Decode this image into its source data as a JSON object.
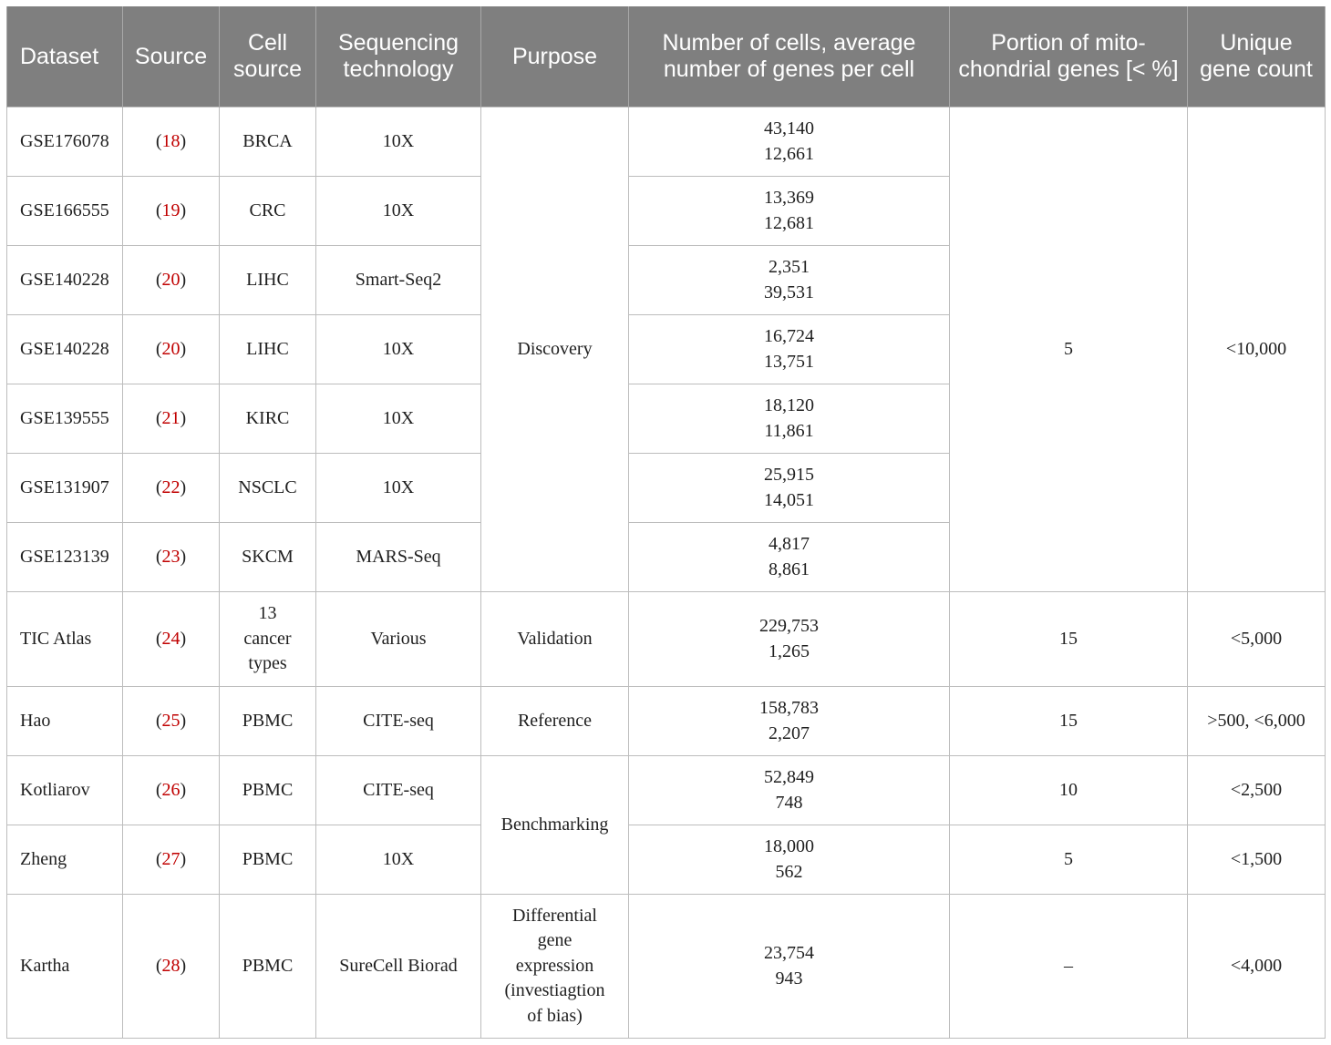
{
  "headers": [
    "Dataset",
    "Source",
    "Cell source",
    "Sequencing technology",
    "Purpose",
    "Number of cells, average number of genes per cell",
    "Portion of mito-chondrial genes [< %]",
    "Unique gene count"
  ],
  "rows": [
    {
      "dataset": "GSE176078",
      "ref": "18",
      "cell_source": "BRCA",
      "tech": "10X",
      "cells": "43,140",
      "genes": "12,661"
    },
    {
      "dataset": "GSE166555",
      "ref": "19",
      "cell_source": "CRC",
      "tech": "10X",
      "cells": "13,369",
      "genes": "12,681"
    },
    {
      "dataset": "GSE140228",
      "ref": "20",
      "cell_source": "LIHC",
      "tech": "Smart-Seq2",
      "cells": "2,351",
      "genes": "39,531"
    },
    {
      "dataset": "GSE140228",
      "ref": "20",
      "cell_source": "LIHC",
      "tech": "10X",
      "cells": "16,724",
      "genes": "13,751"
    },
    {
      "dataset": "GSE139555",
      "ref": "21",
      "cell_source": "KIRC",
      "tech": "10X",
      "cells": "18,120",
      "genes": "11,861"
    },
    {
      "dataset": "GSE131907",
      "ref": "22",
      "cell_source": "NSCLC",
      "tech": "10X",
      "cells": "25,915",
      "genes": "14,051"
    },
    {
      "dataset": "GSE123139",
      "ref": "23",
      "cell_source": "SKCM",
      "tech": "MARS-Seq",
      "cells": "4,817",
      "genes": "8,861"
    },
    {
      "dataset": "TIC Atlas",
      "ref": "24",
      "cell_source": "13 cancer types",
      "tech": "Various",
      "purpose": "Validation",
      "cells": "229,753",
      "genes": "1,265",
      "mito": "15",
      "unique": "<5,000"
    },
    {
      "dataset": "Hao",
      "ref": "25",
      "cell_source": "PBMC",
      "tech": "CITE-seq",
      "purpose": "Reference",
      "cells": "158,783",
      "genes": "2,207",
      "mito": "15",
      "unique": ">500, <6,000"
    },
    {
      "dataset": "Kotliarov",
      "ref": "26",
      "cell_source": "PBMC",
      "tech": "CITE-seq",
      "cells": "52,849",
      "genes": "748",
      "mito": "10",
      "unique": "<2,500"
    },
    {
      "dataset": "Zheng",
      "ref": "27",
      "cell_source": "PBMC",
      "tech": "10X",
      "cells": "18,000",
      "genes": "562",
      "mito": "5",
      "unique": "<1,500"
    },
    {
      "dataset": "Kartha",
      "ref": "28",
      "cell_source": "PBMC",
      "tech": "SureCell Biorad",
      "purpose": "Differential gene expression (investiagtion of bias)",
      "cells": "23,754",
      "genes": "943",
      "mito": "–",
      "unique": "<4,000"
    }
  ],
  "merged": {
    "discovery_purpose": "Discovery",
    "discovery_mito": "5",
    "discovery_unique": "<10,000",
    "benchmarking_purpose": "Benchmarking"
  },
  "colors": {
    "header_bg": "#7f7f7f",
    "header_text": "#ffffff",
    "reference_link": "#c00000",
    "grid": "#bdbdbd"
  }
}
